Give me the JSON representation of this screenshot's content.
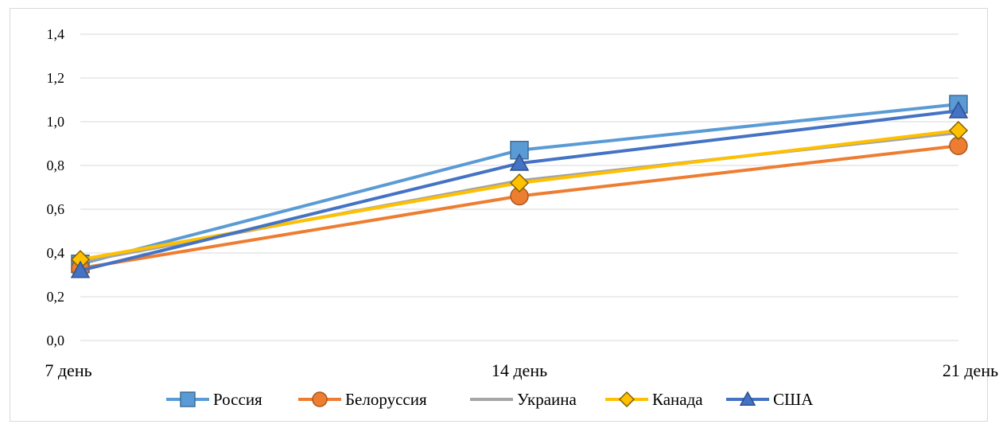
{
  "chart_data": {
    "type": "line",
    "categories": [
      "7 день",
      "14 день",
      "21 день"
    ],
    "ylim": [
      0.0,
      1.4
    ],
    "yticks": [
      "0,0",
      "0,2",
      "0,4",
      "0,6",
      "0,8",
      "1,0",
      "1,2",
      "1,4"
    ],
    "grid": true,
    "legend_position": "bottom",
    "series": [
      {
        "name": "Россия",
        "values": [
          0.35,
          0.87,
          1.08
        ],
        "color": "#5B9BD5",
        "marker": "square"
      },
      {
        "name": "Белоруссия",
        "values": [
          0.33,
          0.66,
          0.89
        ],
        "color": "#ED7D31",
        "marker": "circle"
      },
      {
        "name": "Украина",
        "values": [
          0.36,
          0.73,
          0.95
        ],
        "color": "#A5A5A5",
        "marker": "none"
      },
      {
        "name": "Канада",
        "values": [
          0.37,
          0.72,
          0.96
        ],
        "color": "#FFC000",
        "marker": "diamond"
      },
      {
        "name": "США",
        "values": [
          0.32,
          0.81,
          1.05
        ],
        "color": "#4472C4",
        "marker": "triangle"
      }
    ]
  }
}
